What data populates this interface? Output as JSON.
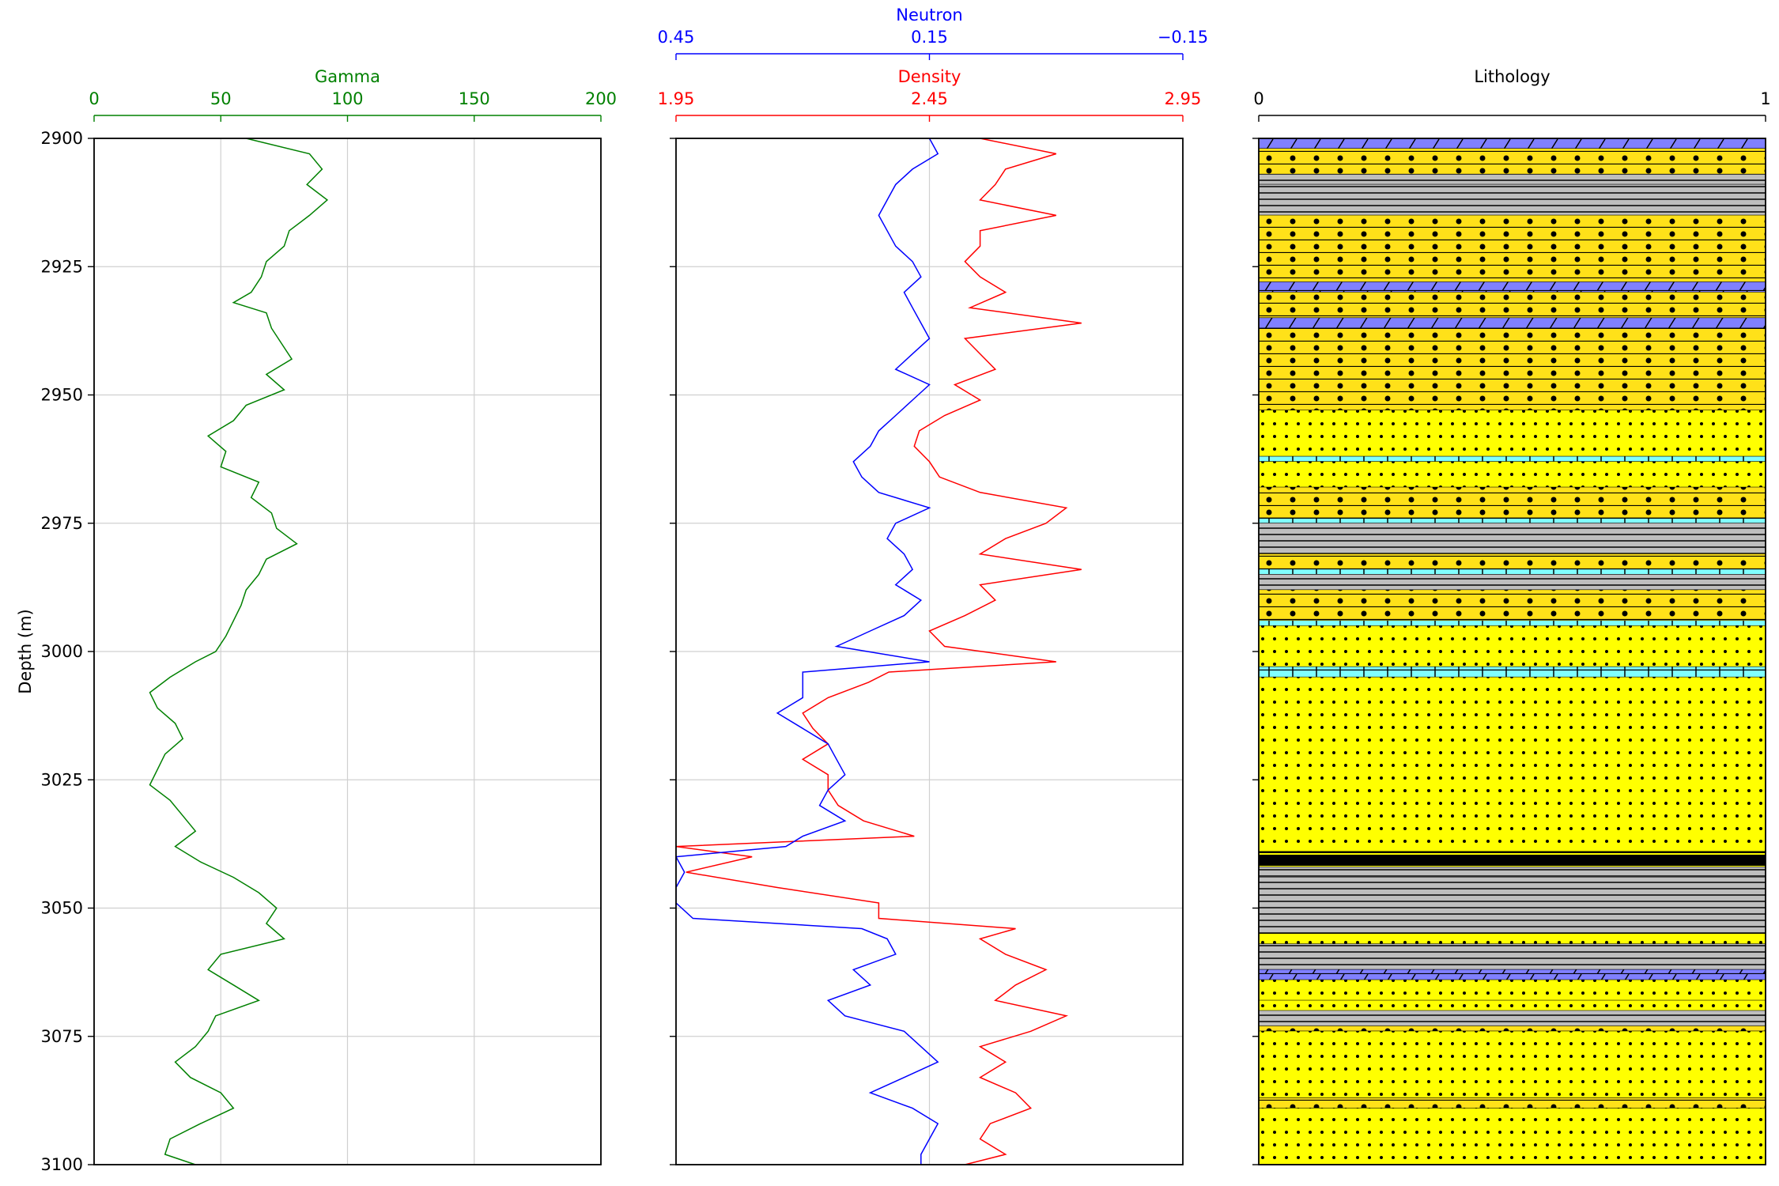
{
  "chart_data": [
    {
      "type": "line",
      "panel": "gamma",
      "xlabel": "Gamma",
      "ylabel": "Depth (m)",
      "xlim": [
        0,
        200
      ],
      "ylim": [
        3100,
        2900
      ],
      "y_inverted": true,
      "x_ticks": [
        "0",
        "50",
        "100",
        "150",
        "200"
      ],
      "y_ticks": [
        "2900",
        "2925",
        "2950",
        "2975",
        "3000",
        "3025",
        "3050",
        "3075",
        "3100"
      ],
      "grid": true,
      "color": "#008000",
      "series": [
        {
          "name": "Gamma",
          "depth": [
            2900,
            2903,
            2906,
            2909,
            2912,
            2915,
            2918,
            2921,
            2924,
            2927,
            2930,
            2932,
            2934,
            2937,
            2940,
            2943,
            2946,
            2949,
            2952,
            2955,
            2958,
            2961,
            2964,
            2967,
            2970,
            2973,
            2976,
            2979,
            2982,
            2985,
            2988,
            2991,
            2994,
            2997,
            3000,
            3002,
            3005,
            3008,
            3011,
            3014,
            3017,
            3020,
            3023,
            3026,
            3029,
            3032,
            3035,
            3038,
            3041,
            3044,
            3047,
            3050,
            3053,
            3056,
            3059,
            3062,
            3065,
            3068,
            3071,
            3074,
            3077,
            3080,
            3083,
            3086,
            3089,
            3092,
            3095,
            3098,
            3100
          ],
          "values": [
            60,
            85,
            90,
            84,
            92,
            85,
            77,
            75,
            68,
            66,
            62,
            55,
            68,
            70,
            74,
            78,
            68,
            75,
            60,
            55,
            45,
            52,
            50,
            65,
            62,
            70,
            72,
            80,
            68,
            65,
            60,
            58,
            55,
            52,
            48,
            40,
            30,
            22,
            25,
            32,
            35,
            28,
            25,
            22,
            30,
            35,
            40,
            32,
            42,
            55,
            65,
            72,
            68,
            75,
            50,
            45,
            55,
            65,
            48,
            45,
            40,
            32,
            38,
            50,
            55,
            42,
            30,
            28,
            40
          ]
        }
      ]
    },
    {
      "type": "line",
      "panel": "density-neutron",
      "ylim": [
        3100,
        2900
      ],
      "y_inverted": true,
      "y_ticks": [
        "2900",
        "2925",
        "2950",
        "2975",
        "3000",
        "3025",
        "3050",
        "3075",
        "3100"
      ],
      "grid": true,
      "axes": [
        {
          "label": "Neutron",
          "color": "#0000ff",
          "xlim": [
            0.45,
            -0.15
          ],
          "ticks": [
            "0.45",
            "0.15",
            "−0.15"
          ]
        },
        {
          "label": "Density",
          "color": "#ff0000",
          "xlim": [
            1.95,
            2.95
          ],
          "ticks": [
            "1.95",
            "2.45",
            "2.95"
          ]
        }
      ],
      "series": [
        {
          "name": "Neutron",
          "depth": [
            2900,
            2903,
            2906,
            2909,
            2912,
            2915,
            2918,
            2921,
            2924,
            2927,
            2930,
            2933,
            2936,
            2939,
            2942,
            2945,
            2948,
            2951,
            2954,
            2957,
            2960,
            2963,
            2966,
            2969,
            2972,
            2975,
            2978,
            2981,
            2984,
            2987,
            2990,
            2993,
            2996,
            2999,
            3002,
            3004,
            3006,
            3009,
            3012,
            3015,
            3018,
            3021,
            3024,
            3027,
            3030,
            3033,
            3036,
            3038,
            3040,
            3043,
            3046,
            3049,
            3052,
            3054,
            3056,
            3059,
            3062,
            3065,
            3068,
            3071,
            3074,
            3077,
            3080,
            3083,
            3086,
            3089,
            3092,
            3095,
            3098,
            3100
          ],
          "values": [
            0.15,
            0.14,
            0.17,
            0.19,
            0.2,
            0.21,
            0.2,
            0.19,
            0.17,
            0.16,
            0.18,
            0.17,
            0.16,
            0.15,
            0.17,
            0.19,
            0.15,
            0.17,
            0.19,
            0.21,
            0.22,
            0.24,
            0.23,
            0.21,
            0.15,
            0.19,
            0.2,
            0.18,
            0.17,
            0.19,
            0.16,
            0.18,
            0.22,
            0.26,
            0.15,
            0.3,
            0.3,
            0.3,
            0.33,
            0.3,
            0.27,
            0.26,
            0.25,
            0.27,
            0.28,
            0.25,
            0.3,
            0.32,
            0.45,
            0.44,
            0.45,
            0.45,
            0.43,
            0.23,
            0.2,
            0.19,
            0.24,
            0.22,
            0.27,
            0.25,
            0.18,
            0.16,
            0.14,
            0.18,
            0.22,
            0.17,
            0.14,
            0.15,
            0.16,
            0.16
          ]
        },
        {
          "name": "Density",
          "depth": [
            2900,
            2903,
            2906,
            2909,
            2912,
            2915,
            2918,
            2921,
            2924,
            2927,
            2930,
            2933,
            2936,
            2939,
            2942,
            2945,
            2948,
            2951,
            2954,
            2957,
            2960,
            2963,
            2966,
            2969,
            2972,
            2975,
            2978,
            2981,
            2984,
            2987,
            2990,
            2993,
            2996,
            2999,
            3002,
            3004,
            3006,
            3009,
            3012,
            3015,
            3018,
            3021,
            3024,
            3027,
            3030,
            3033,
            3036,
            3038,
            3040,
            3043,
            3046,
            3049,
            3052,
            3054,
            3056,
            3059,
            3062,
            3065,
            3068,
            3071,
            3074,
            3077,
            3080,
            3083,
            3086,
            3089,
            3092,
            3095,
            3098,
            3100
          ],
          "values": [
            2.55,
            2.7,
            2.6,
            2.58,
            2.55,
            2.7,
            2.55,
            2.55,
            2.52,
            2.55,
            2.6,
            2.53,
            2.75,
            2.52,
            2.55,
            2.58,
            2.5,
            2.55,
            2.48,
            2.43,
            2.42,
            2.45,
            2.47,
            2.55,
            2.72,
            2.68,
            2.6,
            2.55,
            2.75,
            2.55,
            2.58,
            2.52,
            2.45,
            2.48,
            2.7,
            2.37,
            2.33,
            2.25,
            2.2,
            2.22,
            2.25,
            2.2,
            2.25,
            2.25,
            2.27,
            2.32,
            2.42,
            1.95,
            2.1,
            1.97,
            2.15,
            2.35,
            2.35,
            2.62,
            2.55,
            2.6,
            2.68,
            2.62,
            2.58,
            2.72,
            2.65,
            2.55,
            2.6,
            2.55,
            2.62,
            2.65,
            2.57,
            2.55,
            2.6,
            2.52
          ]
        }
      ]
    },
    {
      "type": "area",
      "panel": "lithology",
      "xlabel": "Lithology",
      "xlim": [
        0,
        1
      ],
      "x_ticks": [
        "0",
        "1"
      ],
      "ylim": [
        3100,
        2900
      ],
      "y_inverted": true,
      "grid": false,
      "lithology_colors": {
        "sandstone": "#ffff00",
        "cemented-sandstone": "#ffe119",
        "shale": "#bebebe",
        "limestone": "#80ffff",
        "dolomite": "#8080ff",
        "coal": "#000000"
      },
      "intervals": [
        {
          "top": 2900,
          "base": 2902,
          "lith": "dolomite"
        },
        {
          "top": 2902,
          "base": 2907,
          "lith": "cemented-sandstone"
        },
        {
          "top": 2907,
          "base": 2909,
          "lith": "shale"
        },
        {
          "top": 2909,
          "base": 2915,
          "lith": "shale"
        },
        {
          "top": 2915,
          "base": 2928,
          "lith": "cemented-sandstone"
        },
        {
          "top": 2928,
          "base": 2930,
          "lith": "dolomite"
        },
        {
          "top": 2930,
          "base": 2935,
          "lith": "cemented-sandstone"
        },
        {
          "top": 2935,
          "base": 2937,
          "lith": "dolomite"
        },
        {
          "top": 2937,
          "base": 2953,
          "lith": "cemented-sandstone"
        },
        {
          "top": 2953,
          "base": 2962,
          "lith": "sandstone"
        },
        {
          "top": 2962,
          "base": 2963,
          "lith": "limestone"
        },
        {
          "top": 2963,
          "base": 2968,
          "lith": "sandstone"
        },
        {
          "top": 2968,
          "base": 2974,
          "lith": "cemented-sandstone"
        },
        {
          "top": 2974,
          "base": 2975,
          "lith": "limestone"
        },
        {
          "top": 2975,
          "base": 2981,
          "lith": "shale"
        },
        {
          "top": 2981,
          "base": 2984,
          "lith": "cemented-sandstone"
        },
        {
          "top": 2984,
          "base": 2985,
          "lith": "limestone"
        },
        {
          "top": 2985,
          "base": 2988,
          "lith": "shale"
        },
        {
          "top": 2988,
          "base": 2994,
          "lith": "cemented-sandstone"
        },
        {
          "top": 2994,
          "base": 2995,
          "lith": "limestone"
        },
        {
          "top": 2995,
          "base": 3003,
          "lith": "sandstone"
        },
        {
          "top": 3003,
          "base": 3005,
          "lith": "limestone"
        },
        {
          "top": 3005,
          "base": 3039,
          "lith": "sandstone"
        },
        {
          "top": 3039,
          "base": 3042,
          "lith": "coal"
        },
        {
          "top": 3042,
          "base": 3044,
          "lith": "shale"
        },
        {
          "top": 3044,
          "base": 3055,
          "lith": "shale"
        },
        {
          "top": 3055,
          "base": 3057,
          "lith": "sandstone"
        },
        {
          "top": 3057,
          "base": 3062,
          "lith": "shale"
        },
        {
          "top": 3062,
          "base": 3064,
          "lith": "dolomite"
        },
        {
          "top": 3064,
          "base": 3068,
          "lith": "sandstone"
        },
        {
          "top": 3068,
          "base": 3070,
          "lith": "sandstone"
        },
        {
          "top": 3070,
          "base": 3073,
          "lith": "shale"
        },
        {
          "top": 3073,
          "base": 3074,
          "lith": "cemented-sandstone"
        },
        {
          "top": 3074,
          "base": 3087,
          "lith": "sandstone"
        },
        {
          "top": 3087,
          "base": 3089,
          "lith": "cemented-sandstone"
        },
        {
          "top": 3089,
          "base": 3100,
          "lith": "sandstone"
        }
      ]
    }
  ]
}
